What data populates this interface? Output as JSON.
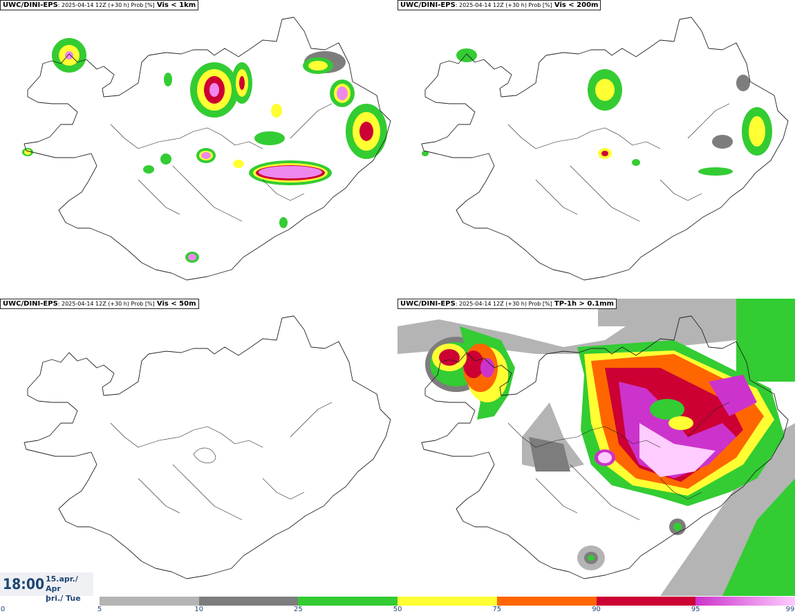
{
  "panels": [
    {
      "source": "UWC/DINI-EPS",
      "meta": ": 2025-04-14 12Z (+30 h) Prob [%]",
      "variable": "Vis < 1km"
    },
    {
      "source": "UWC/DINI-EPS",
      "meta": ": 2025-04-14 12Z (+30 h) Prob [%]",
      "variable": "Vis < 200m"
    },
    {
      "source": "UWC/DINI-EPS",
      "meta": ": 2025-04-14 12Z (+30 h) Prob [%]",
      "variable": "Vis < 50m"
    },
    {
      "source": "UWC/DINI-EPS",
      "meta": ": 2025-04-14 12Z (+30 h) Prob [%]",
      "variable": "TP-1h > 0.1mm"
    }
  ],
  "valid_time": {
    "time": "18:00",
    "date_line1": "15.apr./ Apr",
    "date_line2": "þri./ Tue"
  },
  "colorbar": {
    "ticks": [
      "0",
      "5",
      "10",
      "25",
      "50",
      "75",
      "90",
      "95",
      "99"
    ],
    "bins": [
      {
        "from": 5,
        "to": 10,
        "color": "#b4b4b4"
      },
      {
        "from": 10,
        "to": 25,
        "color": "#7d7d7d"
      },
      {
        "from": 25,
        "to": 50,
        "color": "#33cc33"
      },
      {
        "from": 50,
        "to": 75,
        "color": "#ffff33"
      },
      {
        "from": 75,
        "to": 90,
        "color": "#ff6600"
      },
      {
        "from": 90,
        "to": 95,
        "color": "#cc0033"
      },
      {
        "from": 95,
        "to": 99,
        "color": "#cc33cc",
        "gradient_to": "#ffccff"
      }
    ]
  },
  "colors": {
    "coastline": "#222222",
    "prob_5_10": "#b4b4b4",
    "prob_10_25": "#7d7d7d",
    "prob_25_50": "#33cc33",
    "prob_50_75": "#ffff33",
    "prob_75_90": "#ff6600",
    "prob_90_95": "#cc0033",
    "prob_95_99": "#ee77ee",
    "time_text": "#1f4573"
  }
}
